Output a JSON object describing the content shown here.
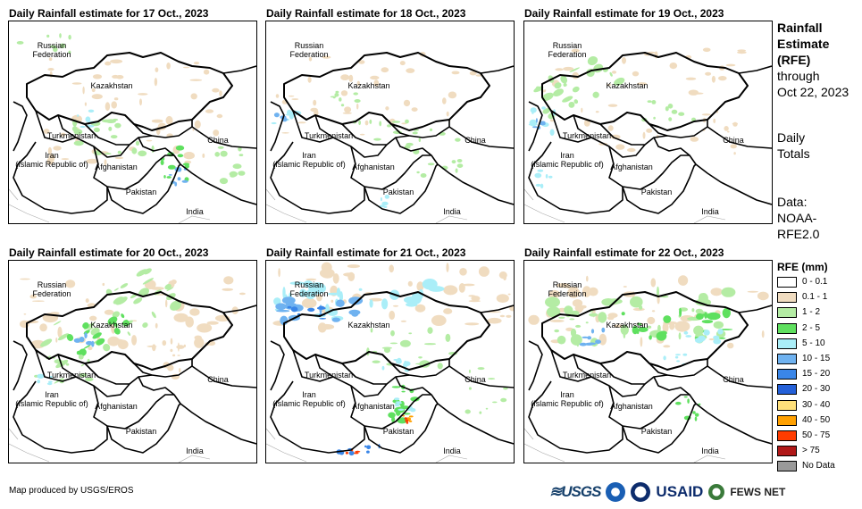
{
  "panels": [
    {
      "title": "Daily Rainfall estimate for 17 Oct., 2023"
    },
    {
      "title": "Daily Rainfall estimate for 18 Oct., 2023"
    },
    {
      "title": "Daily Rainfall estimate for 19 Oct., 2023"
    },
    {
      "title": "Daily Rainfall estimate for 20 Oct., 2023"
    },
    {
      "title": "Daily Rainfall estimate for 21 Oct., 2023"
    },
    {
      "title": "Daily Rainfall estimate for 22 Oct., 2023"
    }
  ],
  "labels": {
    "russia": "Russian Federation",
    "russia_l1": "Russian",
    "russia_l2": "Federation",
    "kazakhstan": "Kazakhstan",
    "turkmenistan": "Turkmenistan",
    "iran_l1": "Iran",
    "iran_l2": "(Islamic Republic of)",
    "afghanistan": "Afghanistan",
    "pakistan": "Pakistan",
    "china": "China",
    "india": "India"
  },
  "side": {
    "title_l1": "Rainfall",
    "title_l2": "Estimate",
    "title_l3": "(RFE)",
    "through": "through",
    "date": "Oct 22, 2023",
    "daily_l1": "Daily",
    "daily_l2": "Totals",
    "data_l1": "Data:",
    "data_l2": "NOAA-",
    "data_l3": "RFE2.0"
  },
  "legend": {
    "title": "RFE (mm)",
    "items": [
      {
        "label": "0 - 0.1",
        "color": "#ffffff"
      },
      {
        "label": "0.1 - 1",
        "color": "#f0dcc0"
      },
      {
        "label": "1 - 2",
        "color": "#b4eca4"
      },
      {
        "label": "2 - 5",
        "color": "#5fe05f"
      },
      {
        "label": "5 - 10",
        "color": "#aaeef8"
      },
      {
        "label": "10 - 15",
        "color": "#6fb2f0"
      },
      {
        "label": "15 - 20",
        "color": "#3a86e8"
      },
      {
        "label": "20 - 30",
        "color": "#2460d8"
      },
      {
        "label": "30 - 40",
        "color": "#ffe07a"
      },
      {
        "label": "40 - 50",
        "color": "#ffa000"
      },
      {
        "label": "50 - 75",
        "color": "#ff3c00"
      },
      {
        "label": "> 75",
        "color": "#b01818"
      },
      {
        "label": "No Data",
        "color": "#999999"
      }
    ]
  },
  "credit": "Map produced by USGS/EROS",
  "logos": {
    "usgs": "≋USGS",
    "usaid": "USAID",
    "fews": "FEWS NET"
  }
}
